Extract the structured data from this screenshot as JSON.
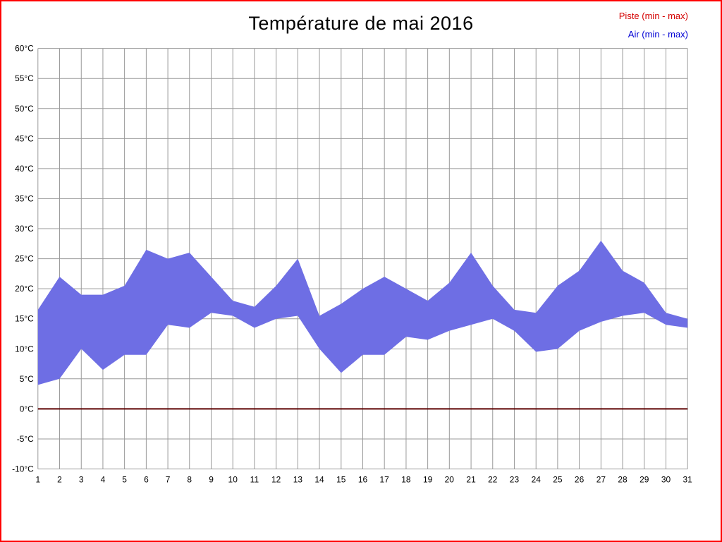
{
  "title": "Température de mai 2016",
  "legend": {
    "piste_label": "Piste (min - max)",
    "air_label": "Air (min - max)",
    "piste_color": "#d40000",
    "air_color": "#0000d4"
  },
  "chart_data": {
    "type": "area",
    "title": "Température de mai 2016",
    "xlabel": "",
    "ylabel": "",
    "ylim": [
      -10,
      60
    ],
    "grid": true,
    "grid_color": "#999999",
    "legend_position": "top-right",
    "x": [
      1,
      2,
      3,
      4,
      5,
      6,
      7,
      8,
      9,
      10,
      11,
      12,
      13,
      14,
      15,
      16,
      17,
      18,
      19,
      20,
      21,
      22,
      23,
      24,
      25,
      26,
      27,
      28,
      29,
      30,
      31
    ],
    "xtick_labels": [
      "1",
      "2",
      "3",
      "4",
      "5",
      "6",
      "7",
      "8",
      "9",
      "10",
      "11",
      "12",
      "13",
      "14",
      "15",
      "16",
      "17",
      "18",
      "19",
      "20",
      "21",
      "22",
      "23",
      "24",
      "25",
      "26",
      "27",
      "28",
      "29",
      "30",
      "31"
    ],
    "ytick_values": [
      60,
      55,
      50,
      45,
      40,
      35,
      30,
      25,
      20,
      15,
      10,
      5,
      0,
      -5,
      -10
    ],
    "ytick_labels": [
      "60°C",
      "55°C",
      "50°C",
      "45°C",
      "40°C",
      "35°C",
      "30°C",
      "25°C",
      "20°C",
      "15°C",
      "10°C",
      "5°C",
      "0°C",
      "-5°C",
      "-10°C"
    ],
    "air": {
      "name": "Air (min - max)",
      "color": "#6e6ee4",
      "max": [
        16.5,
        22,
        19,
        19,
        20.5,
        26.5,
        25,
        26,
        22,
        18,
        17,
        20.5,
        25,
        15.5,
        17.5,
        20,
        22,
        20,
        18,
        21,
        26,
        20.5,
        16.5,
        16,
        20.5,
        23,
        28,
        23,
        21,
        16,
        15
      ],
      "min": [
        4,
        5,
        10,
        6.5,
        9,
        9,
        14,
        13.5,
        16,
        15.5,
        13.5,
        15,
        15.5,
        10,
        6,
        9,
        9,
        12,
        11.5,
        13,
        14,
        15,
        13,
        9.5,
        10,
        13,
        14.5,
        15.5,
        16,
        14,
        13.5
      ]
    },
    "piste": {
      "name": "Piste (min - max)",
      "color": "#5c0000",
      "value": 0
    }
  }
}
